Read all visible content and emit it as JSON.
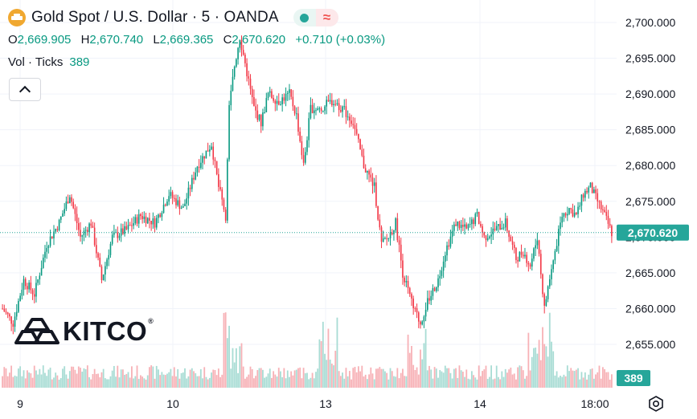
{
  "header": {
    "title": "Gold Spot / U.S. Dollar · 5 · OANDA",
    "pill_live_icon": "green-dot-icon",
    "pill_compare_icon": "approx-icon",
    "pill_compare_glyph": "≈"
  },
  "ohlc": {
    "o_label": "O",
    "o_value": "2,669.905",
    "h_label": "H",
    "h_value": "2,670.740",
    "l_label": "L",
    "l_value": "2,669.365",
    "c_label": "C",
    "c_value": "2,670.620",
    "change": "+0.710 (+0.03%)"
  },
  "volume": {
    "label": "Vol · Ticks",
    "value": "389"
  },
  "logo": {
    "text": "KITCO",
    "mark": "®"
  },
  "colors": {
    "up": "#089981",
    "down": "#f23645",
    "vol_up": "#a8dcd4",
    "vol_down": "#f7b1b6",
    "tag": "#26a69a"
  },
  "chart_data": {
    "type": "candlestick",
    "symbol": "Gold Spot / U.S. Dollar",
    "interval": "5",
    "y_axis": {
      "ticks": [
        "2,700.000",
        "2,695.000",
        "2,690.000",
        "2,685.000",
        "2,680.000",
        "2,675.000",
        "2,670.000",
        "2,665.000",
        "2,660.000",
        "2,655.000"
      ],
      "tick_values": [
        2700,
        2695,
        2690,
        2685,
        2680,
        2675,
        2670,
        2665,
        2660,
        2655
      ],
      "range": [
        2652,
        2702
      ]
    },
    "x_axis": {
      "labels": [
        "9",
        "10",
        "13",
        "14",
        "18:00"
      ]
    },
    "last_price": 2670.62,
    "last_price_label": "2,670.620",
    "last_volume_label": "389",
    "price_path": [
      [
        0,
        2660
      ],
      [
        6,
        2658
      ],
      [
        12,
        2664
      ],
      [
        18,
        2662
      ],
      [
        25,
        2669
      ],
      [
        32,
        2672
      ],
      [
        38,
        2676
      ],
      [
        44,
        2670
      ],
      [
        50,
        2672
      ],
      [
        56,
        2664
      ],
      [
        62,
        2670
      ],
      [
        70,
        2671
      ],
      [
        78,
        2673
      ],
      [
        86,
        2672
      ],
      [
        94,
        2676
      ],
      [
        102,
        2674
      ],
      [
        110,
        2680
      ],
      [
        118,
        2683
      ],
      [
        122,
        2677
      ],
      [
        126,
        2673
      ],
      [
        128,
        2688
      ],
      [
        131,
        2694
      ],
      [
        134,
        2698
      ],
      [
        138,
        2693
      ],
      [
        142,
        2688
      ],
      [
        146,
        2686
      ],
      [
        150,
        2690
      ],
      [
        156,
        2689
      ],
      [
        162,
        2690
      ],
      [
        166,
        2687
      ],
      [
        170,
        2680
      ],
      [
        174,
        2688
      ],
      [
        180,
        2688
      ],
      [
        186,
        2689
      ],
      [
        192,
        2688
      ],
      [
        198,
        2686
      ],
      [
        204,
        2680
      ],
      [
        210,
        2677
      ],
      [
        214,
        2669
      ],
      [
        218,
        2670
      ],
      [
        222,
        2672
      ],
      [
        226,
        2665
      ],
      [
        232,
        2660
      ],
      [
        236,
        2658
      ],
      [
        240,
        2661
      ],
      [
        246,
        2664
      ],
      [
        250,
        2668
      ],
      [
        256,
        2672
      ],
      [
        262,
        2671
      ],
      [
        268,
        2673
      ],
      [
        272,
        2670
      ],
      [
        278,
        2671
      ],
      [
        284,
        2672
      ],
      [
        290,
        2667
      ],
      [
        294,
        2668
      ],
      [
        298,
        2666
      ],
      [
        302,
        2670
      ],
      [
        306,
        2660
      ],
      [
        308,
        2663
      ],
      [
        312,
        2668
      ],
      [
        316,
        2673
      ],
      [
        320,
        2674
      ],
      [
        324,
        2673
      ],
      [
        328,
        2676
      ],
      [
        332,
        2677
      ],
      [
        336,
        2675
      ],
      [
        340,
        2673
      ],
      [
        344,
        2670.6
      ]
    ]
  }
}
